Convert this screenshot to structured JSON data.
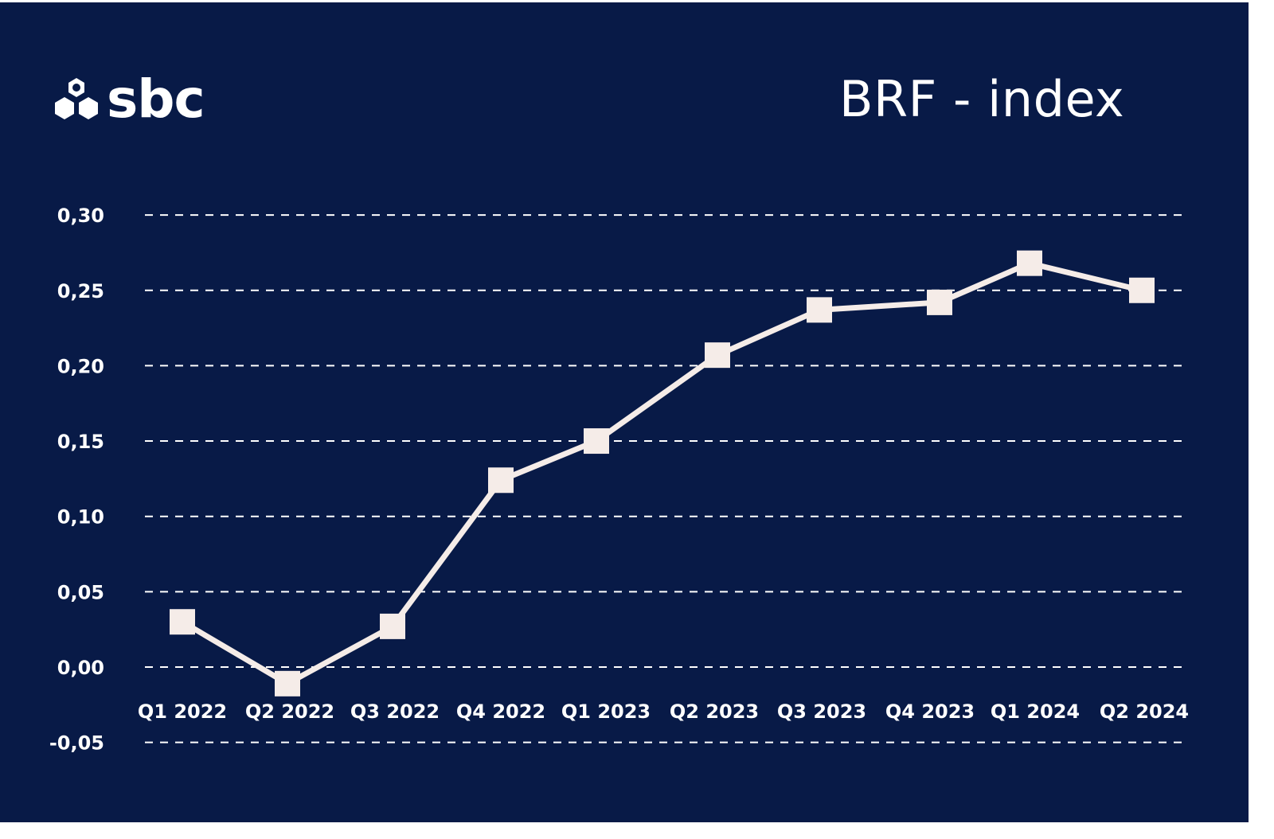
{
  "brand": {
    "logo_text": "sbc",
    "logo_icon": "hexagon-cluster-icon"
  },
  "title": "BRF - index",
  "colors": {
    "background": "#081a47",
    "foreground": "#ffffff",
    "series": "#f5ece8"
  },
  "chart_data": {
    "type": "line",
    "title": "BRF - index",
    "xlabel": "",
    "ylabel": "",
    "categories": [
      "Q1 2022",
      "Q2 2022",
      "Q3 2022",
      "Q4 2022",
      "Q1 2023",
      "Q2 2023",
      "Q3 2023",
      "Q4 2023",
      "Q1 2024",
      "Q2 2024"
    ],
    "series": [
      {
        "name": "BRF - index",
        "values": [
          0.03,
          -0.011,
          0.027,
          0.124,
          0.15,
          0.207,
          0.237,
          0.242,
          0.268,
          0.25
        ]
      }
    ],
    "ylim": [
      -0.05,
      0.3
    ],
    "yticks": [
      0.3,
      0.25,
      0.2,
      0.15,
      0.1,
      0.05,
      0.0,
      -0.05
    ],
    "ytick_labels": [
      "0,30",
      "0,25",
      "0,20",
      "0,15",
      "0,10",
      "0,05",
      "0,00",
      "-0,05"
    ],
    "grid": "horizontal dashed",
    "legend": "none",
    "marker": "square"
  }
}
